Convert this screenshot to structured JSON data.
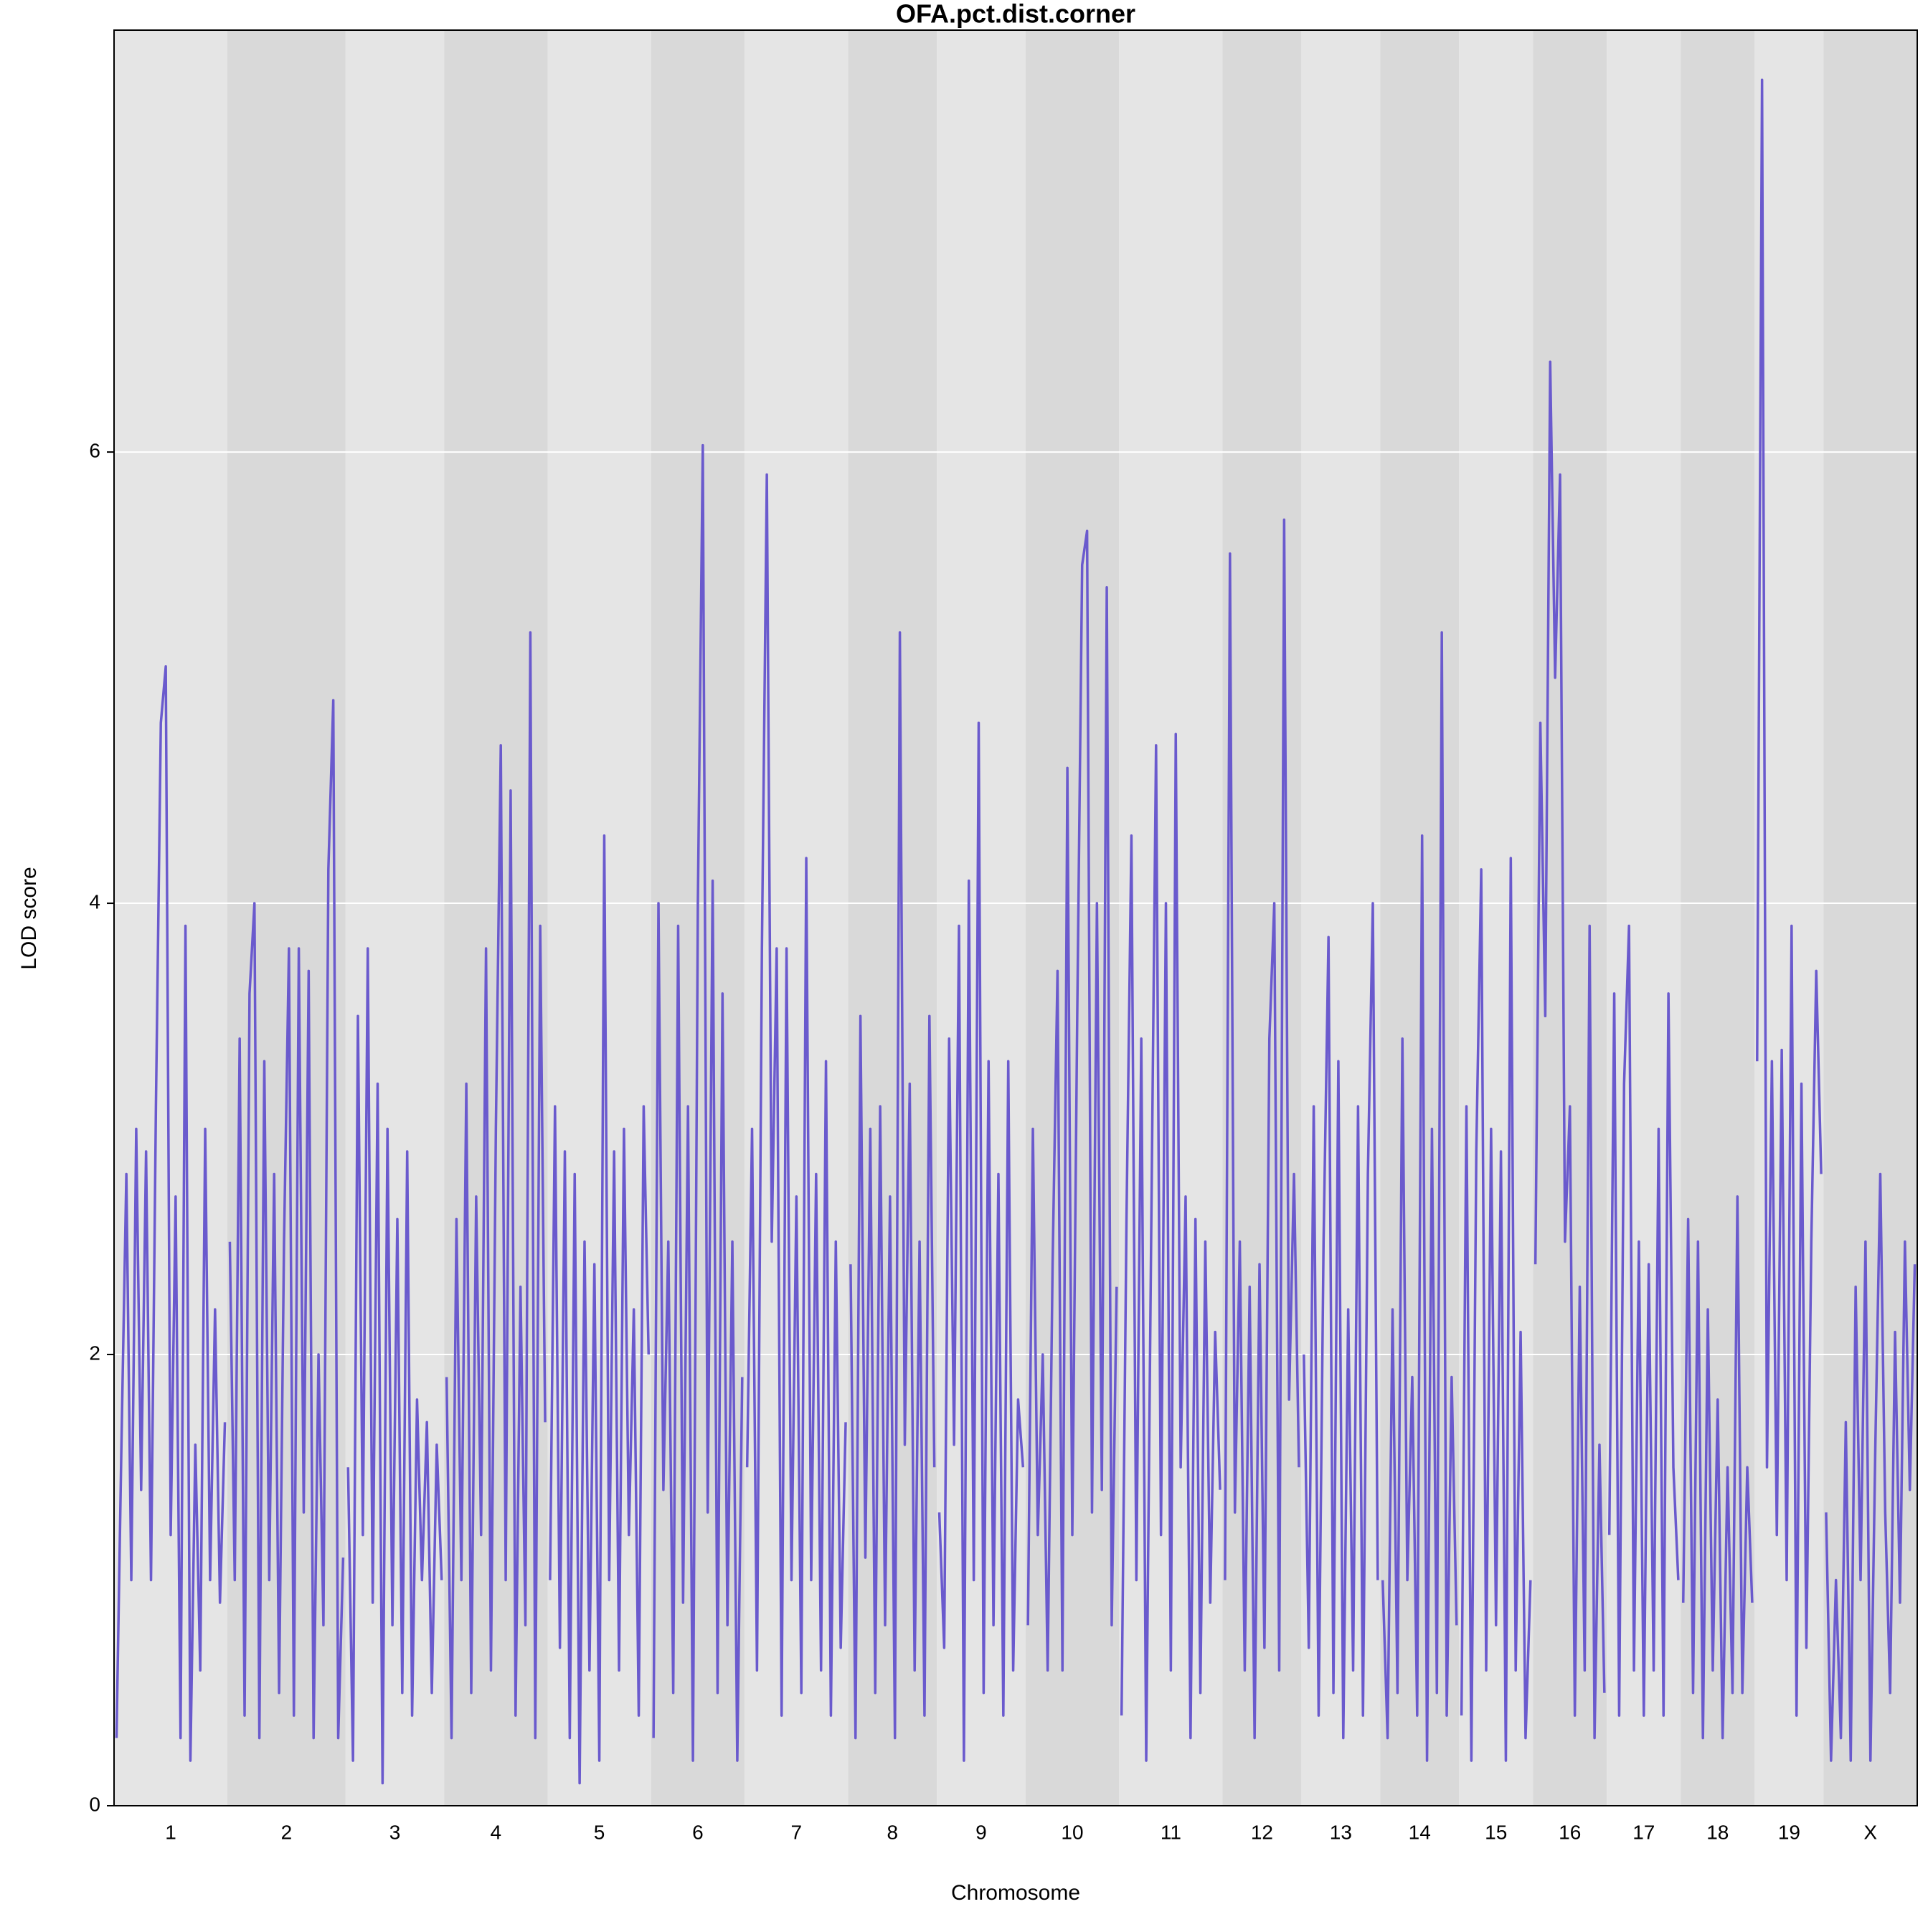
{
  "chart_data": {
    "type": "line",
    "title": "OFA.pct.dist.corner",
    "x_label": "Chromosome",
    "y_label": "LOD score",
    "color": "#6a5acd",
    "ylim": [
      0,
      7.87
    ],
    "yticks": [
      0,
      2,
      4,
      6
    ],
    "grid": true,
    "categories": [
      "1",
      "2",
      "3",
      "4",
      "5",
      "6",
      "7",
      "8",
      "9",
      "10",
      "11",
      "12",
      "13",
      "14",
      "15",
      "16",
      "17",
      "18",
      "19",
      "X"
    ],
    "values": [
      [
        0.3,
        1.6,
        2.8,
        1.0,
        3.0,
        1.4,
        2.9,
        1.0,
        3.1,
        4.8,
        5.05,
        1.2,
        2.7,
        0.3,
        3.9,
        0.2,
        1.6,
        0.6,
        3.0,
        1.0,
        2.2,
        0.9,
        1.7
      ],
      [
        2.5,
        1.0,
        3.4,
        0.4,
        3.6,
        4.0,
        0.3,
        3.3,
        1.0,
        2.8,
        0.5,
        2.5,
        3.8,
        0.4,
        3.8,
        1.3,
        3.7,
        0.3,
        2.0,
        0.8,
        4.15,
        4.9,
        0.3,
        1.1
      ],
      [
        1.5,
        0.2,
        3.5,
        1.2,
        3.8,
        0.9,
        3.2,
        0.1,
        3.0,
        0.8,
        2.6,
        0.5,
        2.9,
        0.4,
        1.8,
        1.0,
        1.7,
        0.5,
        1.6,
        1.0
      ],
      [
        1.9,
        0.3,
        2.6,
        1.0,
        3.2,
        0.5,
        2.7,
        1.2,
        3.8,
        0.6,
        3.0,
        4.7,
        1.0,
        4.5,
        0.4,
        2.3,
        0.8,
        5.2,
        0.3,
        3.9,
        1.7
      ],
      [
        1.0,
        3.1,
        0.7,
        2.9,
        0.3,
        2.8,
        0.1,
        2.5,
        0.6,
        2.4,
        0.2,
        4.3,
        1.0,
        2.9,
        0.6,
        3.0,
        1.2,
        2.2,
        0.4,
        3.1,
        2.0
      ],
      [
        0.3,
        4.0,
        1.4,
        2.5,
        0.5,
        3.9,
        0.9,
        3.1,
        0.2,
        4.0,
        6.03,
        1.3,
        4.1,
        0.5,
        3.6,
        0.8,
        2.5,
        0.2,
        1.9
      ],
      [
        1.5,
        3.0,
        0.6,
        3.8,
        5.9,
        2.5,
        3.8,
        0.4,
        3.8,
        1.0,
        2.7,
        0.5,
        4.2,
        1.0,
        2.8,
        0.6,
        3.3,
        0.4,
        2.5,
        0.7,
        1.7
      ],
      [
        2.4,
        0.3,
        3.5,
        1.1,
        3.0,
        0.5,
        3.1,
        0.8,
        2.7,
        0.3,
        5.2,
        1.6,
        3.2,
        0.6,
        2.5,
        0.4,
        3.5,
        1.5
      ],
      [
        1.3,
        0.7,
        3.4,
        1.6,
        3.9,
        0.2,
        4.1,
        1.0,
        4.8,
        0.5,
        3.3,
        0.8,
        2.8,
        0.4,
        3.3,
        0.6,
        1.8,
        1.5
      ],
      [
        0.8,
        3.0,
        1.2,
        2.0,
        0.6,
        2.4,
        3.7,
        0.6,
        4.6,
        1.2,
        3.5,
        5.5,
        5.65,
        1.3,
        4.0,
        1.4,
        5.4,
        0.8,
        2.3
      ],
      [
        0.4,
        2.6,
        4.3,
        1.0,
        3.4,
        0.2,
        2.5,
        4.7,
        1.2,
        4.0,
        0.6,
        4.75,
        1.5,
        2.7,
        0.3,
        2.6,
        0.5,
        2.5,
        0.9,
        2.1,
        1.4
      ],
      [
        1.0,
        5.55,
        1.3,
        2.5,
        0.6,
        2.3,
        0.3,
        2.4,
        0.7,
        3.4,
        4.0,
        0.6,
        5.7,
        1.8,
        2.8,
        1.5
      ],
      [
        2.0,
        0.7,
        3.1,
        0.4,
        2.5,
        3.85,
        0.5,
        3.3,
        0.3,
        2.2,
        0.6,
        3.1,
        0.4,
        2.8,
        4.0,
        1.0
      ],
      [
        1.0,
        0.3,
        2.2,
        0.5,
        3.4,
        1.0,
        1.9,
        0.4,
        4.3,
        0.2,
        3.0,
        0.5,
        5.2,
        0.4,
        1.9,
        0.8
      ],
      [
        0.4,
        3.1,
        0.2,
        2.9,
        4.15,
        0.6,
        3.0,
        0.8,
        2.9,
        0.2,
        4.2,
        0.6,
        2.1,
        0.3,
        1.0
      ],
      [
        2.4,
        4.8,
        3.5,
        6.4,
        5.0,
        5.9,
        2.5,
        3.1,
        0.4,
        2.3,
        0.6,
        3.9,
        0.3,
        1.6,
        0.5
      ],
      [
        1.2,
        3.6,
        0.4,
        3.2,
        3.9,
        0.6,
        2.5,
        0.4,
        2.4,
        0.6,
        3.0,
        0.4,
        3.6,
        1.5,
        1.0
      ],
      [
        0.9,
        2.6,
        0.5,
        2.5,
        0.3,
        2.2,
        0.6,
        1.8,
        0.3,
        1.5,
        0.5,
        2.7,
        0.5,
        1.5,
        0.9
      ],
      [
        3.3,
        7.65,
        1.5,
        3.3,
        1.2,
        3.35,
        1.0,
        3.9,
        0.4,
        3.2,
        0.7,
        2.5,
        3.7,
        2.8
      ],
      [
        1.3,
        0.2,
        1.0,
        0.3,
        1.7,
        0.2,
        2.3,
        1.0,
        2.5,
        0.2,
        1.6,
        2.8,
        1.3,
        0.5,
        2.1,
        0.9,
        2.5,
        1.4,
        2.4
      ]
    ]
  }
}
